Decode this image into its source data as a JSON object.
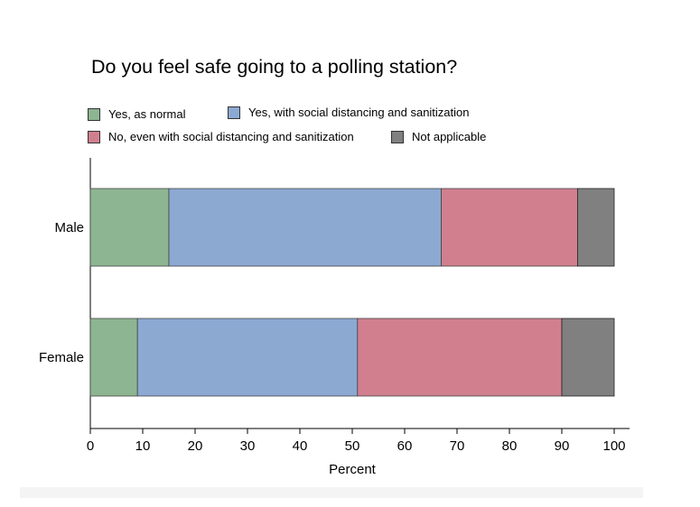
{
  "chart_data": {
    "type": "bar",
    "orientation": "horizontal",
    "stacked": true,
    "title": "Do you feel safe going to a polling station?",
    "xlabel": "Percent",
    "ylabel": "",
    "xlim": [
      0,
      100
    ],
    "x_ticks": [
      "0",
      "10",
      "20",
      "30",
      "40",
      "50",
      "60",
      "70",
      "80",
      "90",
      "100"
    ],
    "categories": [
      "Male",
      "Female"
    ],
    "series": [
      {
        "name": "Yes, as normal",
        "color": "#8db591",
        "values": [
          15,
          9
        ]
      },
      {
        "name": "Yes, with social distancing and sanitization",
        "color": "#8ca9d2",
        "values": [
          52,
          42
        ]
      },
      {
        "name": "No, even with social distancing and sanitization",
        "color": "#d17f8e",
        "values": [
          26,
          39
        ]
      },
      {
        "name": "Not applicable",
        "color": "#808080",
        "values": [
          7,
          10
        ]
      }
    ],
    "legend_position": "top-left",
    "grid": false
  }
}
